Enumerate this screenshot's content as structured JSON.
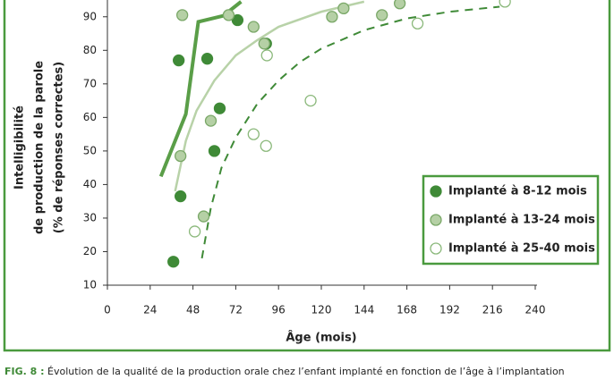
{
  "chart_data": {
    "type": "scatter",
    "ylabel": [
      "Intelligibilité",
      "de production de la parole",
      "(% de réponses correctes)"
    ],
    "xlabel": "Âge (mois)",
    "xlim": [
      0,
      240
    ],
    "xticks": [
      0,
      24,
      48,
      72,
      96,
      120,
      144,
      168,
      192,
      216,
      240
    ],
    "ylim": [
      10,
      95
    ],
    "yticks": [
      10,
      20,
      30,
      40,
      50,
      60,
      70,
      80,
      90
    ],
    "legend": "lower right",
    "series": [
      {
        "name": "Implanté à 8-12 mois",
        "color": "#3f8a37",
        "fill": "#3f8a37",
        "x": [
          37,
          40,
          41,
          56,
          60,
          63,
          73,
          89
        ],
        "values": [
          17,
          77,
          36.5,
          77.5,
          50,
          62.7,
          89,
          82
        ]
      },
      {
        "name": "Implanté à 13-24 mois",
        "color": "#7aa868",
        "fill": "#b5d0a5",
        "x": [
          41,
          42,
          54,
          58,
          68,
          82,
          88,
          126,
          132.5,
          154,
          164
        ],
        "values": [
          48.5,
          90.5,
          30.5,
          59,
          90.5,
          87,
          82,
          90,
          92.5,
          90.5,
          94
        ]
      },
      {
        "name": "Implanté à 25-40 mois",
        "color": "#8ab87a",
        "fill": "#ffffff",
        "x": [
          49,
          82,
          89,
          89.5,
          114,
          174,
          223
        ],
        "values": [
          26,
          55,
          51.5,
          78.5,
          65,
          88,
          94.5
        ]
      }
    ],
    "lines": [
      {
        "color": "#5a9e48",
        "linewidth": 4,
        "dashed": false,
        "x": [
          30,
          44,
          51,
          65,
          75
        ],
        "values": [
          42.4,
          61,
          88.5,
          90.3,
          94.5
        ]
      },
      {
        "color": "#b8d2a8",
        "linewidth": 2.5,
        "dashed": false,
        "x": [
          38,
          44,
          50,
          60,
          72,
          84,
          96,
          120,
          144
        ],
        "values": [
          38,
          53,
          62,
          71,
          78.5,
          83,
          87,
          91.5,
          94.5
        ]
      },
      {
        "color": "#3f8a37",
        "linewidth": 2,
        "dashed": true,
        "x": [
          53,
          58,
          64,
          72,
          84,
          96,
          108,
          120,
          144,
          168,
          192,
          220
        ],
        "values": [
          18,
          33,
          45,
          54,
          64,
          71,
          76.5,
          80.5,
          86,
          89.5,
          91.5,
          93
        ]
      }
    ],
    "caption_label": "FIG. 8 :",
    "caption": "Évolution de la qualité de la production orale chez l’enfant implanté en fonction de l’âge à l’implantation"
  }
}
